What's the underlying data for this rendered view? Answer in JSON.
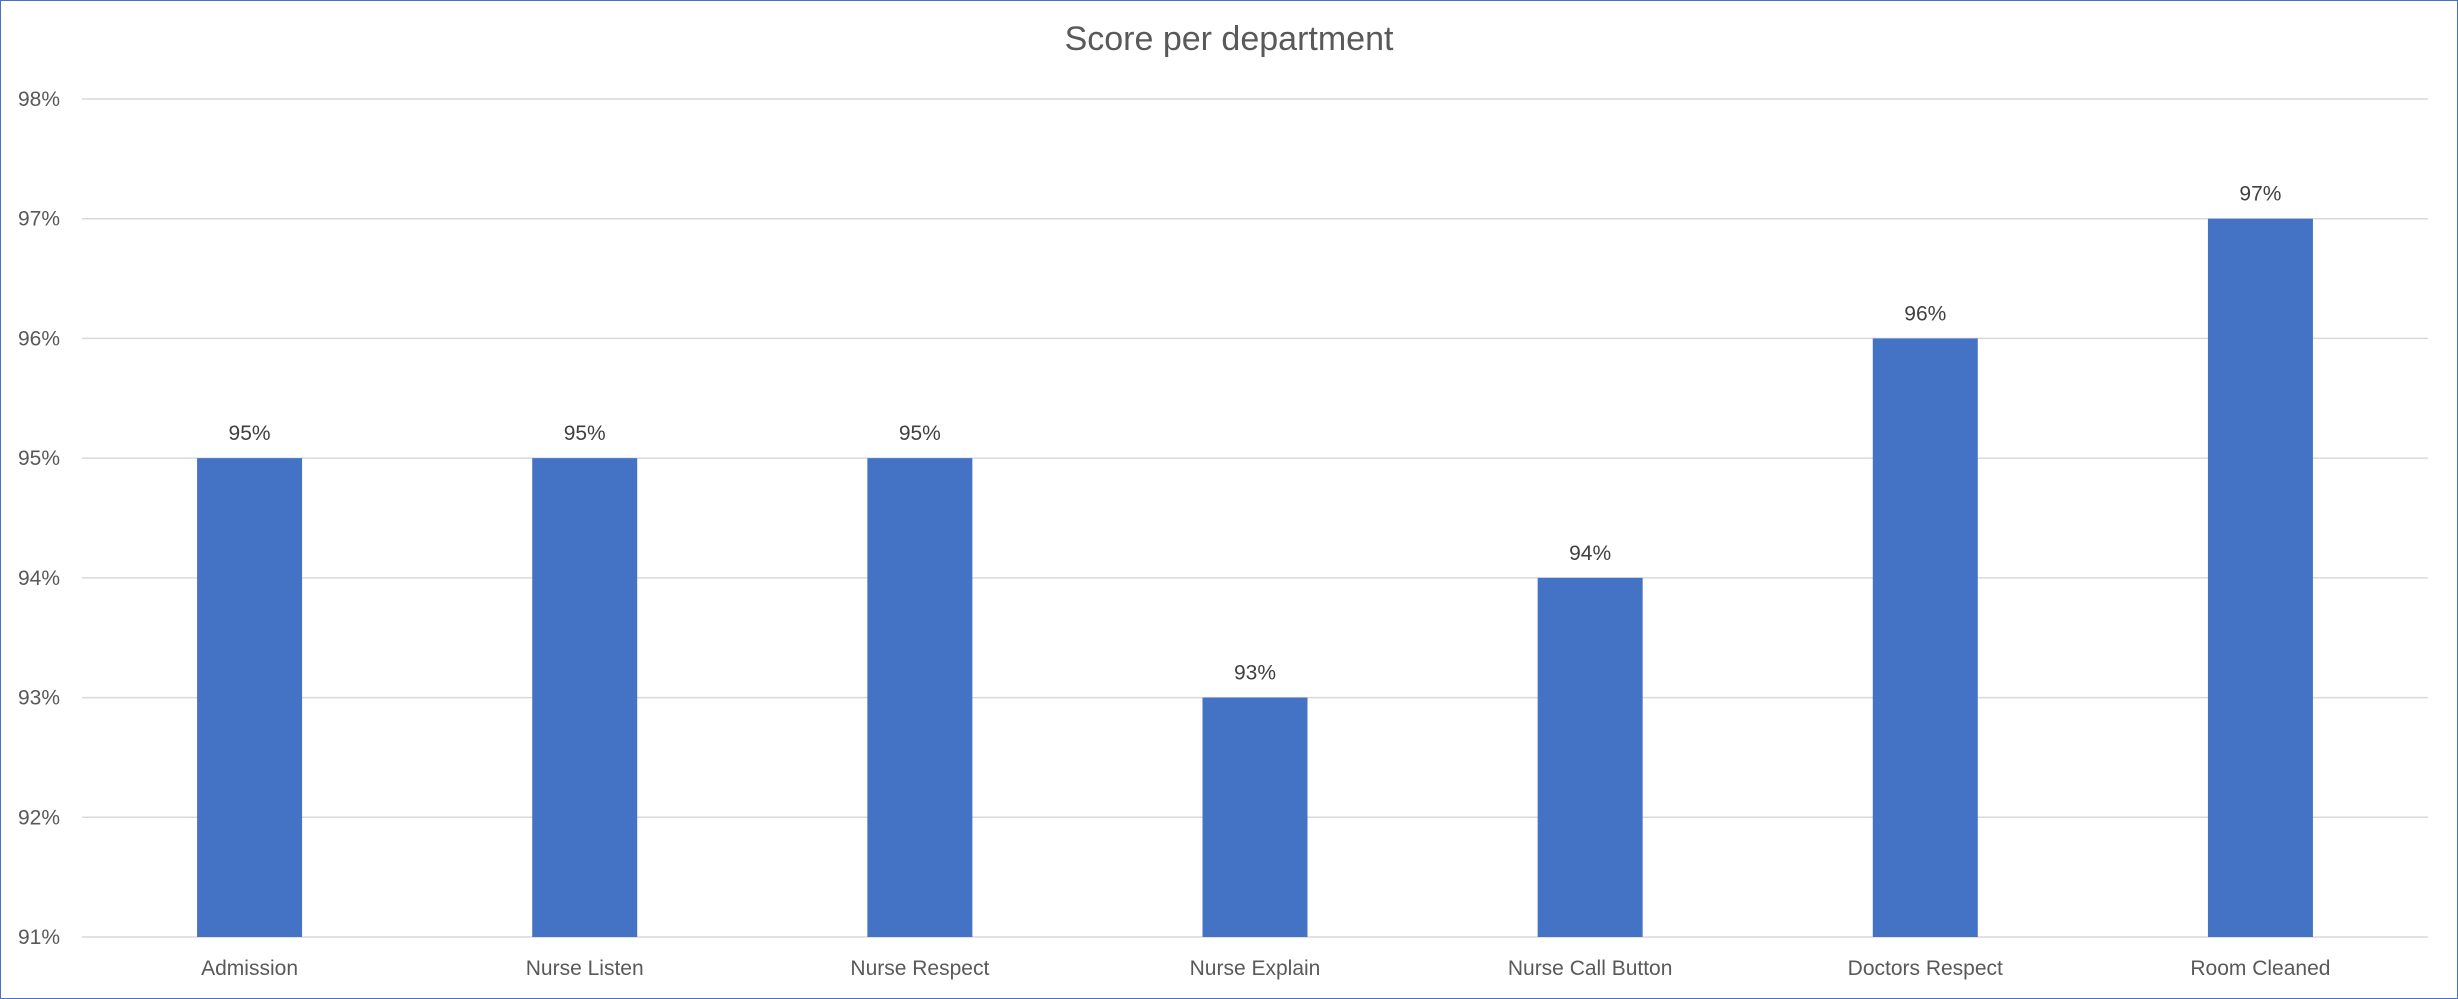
{
  "chart_data": {
    "type": "bar",
    "title": "Score per department",
    "xlabel": "",
    "ylabel": "",
    "categories": [
      "Admission",
      "Nurse Listen",
      "Nurse Respect",
      "Nurse Explain",
      "Nurse Call Button",
      "Doctors Respect",
      "Room Cleaned"
    ],
    "values": [
      0.95,
      0.95,
      0.95,
      0.93,
      0.94,
      0.96,
      0.97
    ],
    "data_labels": [
      "95%",
      "95%",
      "95%",
      "93%",
      "94%",
      "96%",
      "97%"
    ],
    "ylim": [
      0.91,
      0.98
    ],
    "yticks": [
      0.91,
      0.92,
      0.93,
      0.94,
      0.95,
      0.96,
      0.97,
      0.98
    ],
    "ytick_labels": [
      "91%",
      "92%",
      "93%",
      "94%",
      "95%",
      "96%",
      "97%",
      "98%"
    ],
    "grid": true,
    "legend": "none",
    "bar_color": "#4472c4",
    "gridline_color": "#d9d9d9",
    "frame_color": "#4472c4"
  }
}
